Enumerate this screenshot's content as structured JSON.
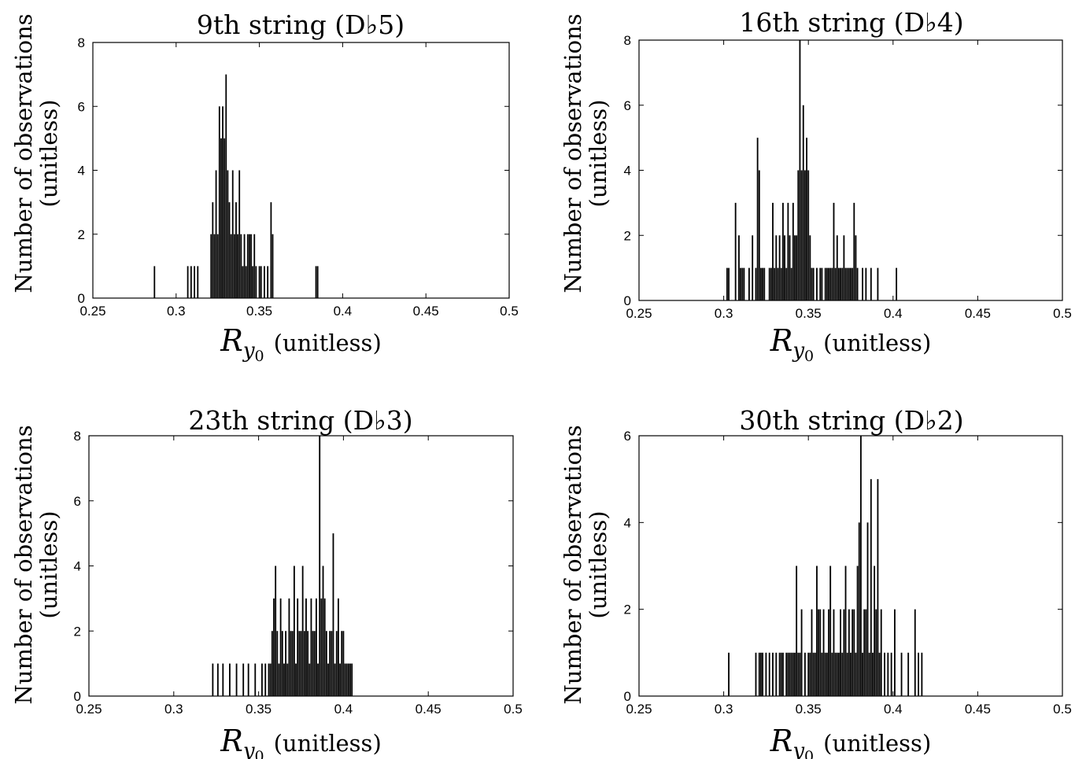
{
  "chart_data": [
    {
      "type": "bar",
      "title": "9th string (D♭5)",
      "xlabel_symbol": "R",
      "xlabel_subscript": "y",
      "xlabel_subsub": "0",
      "xlabel_unit": "(unitless)",
      "ylabel_line1": "Number of observations",
      "ylabel_line2": "(unitless)",
      "xlim": [
        0.25,
        0.5
      ],
      "ylim": [
        0,
        8
      ],
      "xticks": [
        "0.25",
        "0.3",
        "0.35",
        "0.4",
        "0.45",
        "0.5"
      ],
      "yticks": [
        "0",
        "2",
        "4",
        "6",
        "8"
      ],
      "bin_width": 0.001,
      "x": [
        0.287,
        0.307,
        0.309,
        0.311,
        0.313,
        0.321,
        0.322,
        0.323,
        0.324,
        0.325,
        0.326,
        0.327,
        0.328,
        0.329,
        0.33,
        0.331,
        0.332,
        0.333,
        0.334,
        0.335,
        0.336,
        0.337,
        0.338,
        0.339,
        0.34,
        0.341,
        0.342,
        0.343,
        0.344,
        0.345,
        0.346,
        0.347,
        0.348,
        0.35,
        0.351,
        0.353,
        0.355,
        0.357,
        0.358,
        0.384,
        0.385
      ],
      "values": [
        1,
        1,
        1,
        1,
        1,
        2,
        3,
        2,
        4,
        2,
        6,
        5,
        6,
        5,
        7,
        4,
        3,
        2,
        4,
        2,
        3,
        2,
        4,
        2,
        1,
        2,
        1,
        2,
        2,
        2,
        1,
        2,
        1,
        1,
        1,
        1,
        1,
        3,
        2,
        1,
        1
      ]
    },
    {
      "type": "bar",
      "title": "16th string (D♭4)",
      "xlabel_symbol": "R",
      "xlabel_subscript": "y",
      "xlabel_subsub": "0",
      "xlabel_unit": "(unitless)",
      "ylabel_line1": "Number of observations",
      "ylabel_line2": "(unitless)",
      "xlim": [
        0.25,
        0.5
      ],
      "ylim": [
        0,
        8
      ],
      "xticks": [
        "0.25",
        "0.3",
        "0.35",
        "0.4",
        "0.45",
        "0.5"
      ],
      "yticks": [
        "0",
        "2",
        "4",
        "6",
        "8"
      ],
      "bin_width": 0.001,
      "x": [
        0.302,
        0.303,
        0.307,
        0.309,
        0.31,
        0.311,
        0.312,
        0.315,
        0.317,
        0.319,
        0.32,
        0.321,
        0.322,
        0.323,
        0.324,
        0.327,
        0.328,
        0.329,
        0.33,
        0.331,
        0.332,
        0.333,
        0.334,
        0.335,
        0.336,
        0.337,
        0.338,
        0.339,
        0.34,
        0.341,
        0.342,
        0.343,
        0.344,
        0.345,
        0.346,
        0.347,
        0.348,
        0.349,
        0.35,
        0.351,
        0.352,
        0.353,
        0.355,
        0.357,
        0.358,
        0.36,
        0.361,
        0.362,
        0.363,
        0.364,
        0.365,
        0.366,
        0.367,
        0.368,
        0.369,
        0.37,
        0.371,
        0.372,
        0.373,
        0.374,
        0.375,
        0.376,
        0.377,
        0.378,
        0.379,
        0.382,
        0.384,
        0.387,
        0.391,
        0.402
      ],
      "values": [
        1,
        1,
        3,
        2,
        1,
        1,
        1,
        1,
        2,
        1,
        5,
        4,
        1,
        1,
        1,
        1,
        1,
        3,
        1,
        2,
        1,
        2,
        1,
        3,
        2,
        1,
        3,
        2,
        1,
        3,
        2,
        2,
        4,
        8,
        4,
        6,
        4,
        5,
        4,
        2,
        1,
        1,
        1,
        1,
        1,
        1,
        1,
        1,
        1,
        1,
        3,
        1,
        2,
        1,
        1,
        1,
        2,
        1,
        1,
        1,
        1,
        1,
        3,
        2,
        1,
        1,
        1,
        1,
        1,
        1
      ]
    },
    {
      "type": "bar",
      "title": "23th string (D♭3)",
      "xlabel_symbol": "R",
      "xlabel_subscript": "y",
      "xlabel_subsub": "0",
      "xlabel_unit": "(unitless)",
      "ylabel_line1": "Number of observations",
      "ylabel_line2": "(unitless)",
      "xlim": [
        0.25,
        0.5
      ],
      "ylim": [
        0,
        8
      ],
      "xticks": [
        "0.25",
        "0.3",
        "0.35",
        "0.4",
        "0.45",
        "0.5"
      ],
      "yticks": [
        "0",
        "2",
        "4",
        "6",
        "8"
      ],
      "bin_width": 0.001,
      "x": [
        0.323,
        0.326,
        0.329,
        0.333,
        0.337,
        0.341,
        0.344,
        0.348,
        0.352,
        0.354,
        0.356,
        0.357,
        0.358,
        0.359,
        0.36,
        0.361,
        0.362,
        0.363,
        0.364,
        0.365,
        0.366,
        0.367,
        0.368,
        0.369,
        0.37,
        0.371,
        0.372,
        0.373,
        0.374,
        0.375,
        0.376,
        0.377,
        0.378,
        0.379,
        0.38,
        0.381,
        0.382,
        0.383,
        0.384,
        0.385,
        0.386,
        0.387,
        0.388,
        0.389,
        0.39,
        0.391,
        0.392,
        0.393,
        0.394,
        0.395,
        0.396,
        0.397,
        0.398,
        0.399,
        0.4,
        0.401,
        0.402,
        0.403,
        0.404,
        0.405
      ],
      "values": [
        1,
        1,
        1,
        1,
        1,
        1,
        1,
        1,
        1,
        1,
        1,
        1,
        2,
        3,
        4,
        2,
        1,
        3,
        2,
        1,
        2,
        1,
        3,
        2,
        2,
        4,
        1,
        3,
        2,
        2,
        4,
        2,
        3,
        2,
        1,
        3,
        2,
        2,
        3,
        1,
        8,
        3,
        4,
        3,
        2,
        1,
        2,
        2,
        5,
        1,
        2,
        3,
        1,
        2,
        2,
        1,
        1,
        1,
        1,
        1
      ]
    },
    {
      "type": "bar",
      "title": "30th string (D♭2)",
      "xlabel_symbol": "R",
      "xlabel_subscript": "y",
      "xlabel_subsub": "0",
      "xlabel_unit": "(unitless)",
      "ylabel_line1": "Number of observations",
      "ylabel_line2": "(unitless)",
      "xlim": [
        0.25,
        0.5
      ],
      "ylim": [
        0,
        6
      ],
      "xticks": [
        "0.25",
        "0.3",
        "0.35",
        "0.4",
        "0.45",
        "0.5"
      ],
      "yticks": [
        "0",
        "2",
        "4",
        "6"
      ],
      "bin_width": 0.001,
      "x": [
        0.303,
        0.319,
        0.321,
        0.322,
        0.323,
        0.325,
        0.327,
        0.329,
        0.331,
        0.333,
        0.334,
        0.335,
        0.337,
        0.338,
        0.339,
        0.34,
        0.341,
        0.342,
        0.343,
        0.344,
        0.345,
        0.346,
        0.348,
        0.35,
        0.351,
        0.352,
        0.353,
        0.354,
        0.355,
        0.356,
        0.357,
        0.358,
        0.359,
        0.36,
        0.361,
        0.362,
        0.363,
        0.364,
        0.365,
        0.366,
        0.367,
        0.368,
        0.369,
        0.37,
        0.371,
        0.372,
        0.373,
        0.374,
        0.375,
        0.376,
        0.377,
        0.378,
        0.379,
        0.38,
        0.381,
        0.382,
        0.383,
        0.384,
        0.385,
        0.386,
        0.387,
        0.388,
        0.389,
        0.39,
        0.391,
        0.392,
        0.393,
        0.395,
        0.397,
        0.399,
        0.401,
        0.405,
        0.409,
        0.413,
        0.415,
        0.417
      ],
      "values": [
        1,
        1,
        1,
        1,
        1,
        1,
        1,
        1,
        1,
        1,
        1,
        1,
        1,
        1,
        1,
        1,
        1,
        1,
        3,
        1,
        1,
        2,
        1,
        1,
        1,
        2,
        1,
        1,
        3,
        2,
        2,
        1,
        2,
        1,
        1,
        2,
        3,
        1,
        2,
        1,
        1,
        1,
        2,
        1,
        2,
        3,
        1,
        2,
        1,
        2,
        2,
        1,
        3,
        4,
        6,
        1,
        2,
        2,
        4,
        1,
        5,
        1,
        3,
        2,
        5,
        1,
        2,
        1,
        1,
        1,
        2,
        1,
        1,
        2,
        1,
        1
      ]
    }
  ]
}
